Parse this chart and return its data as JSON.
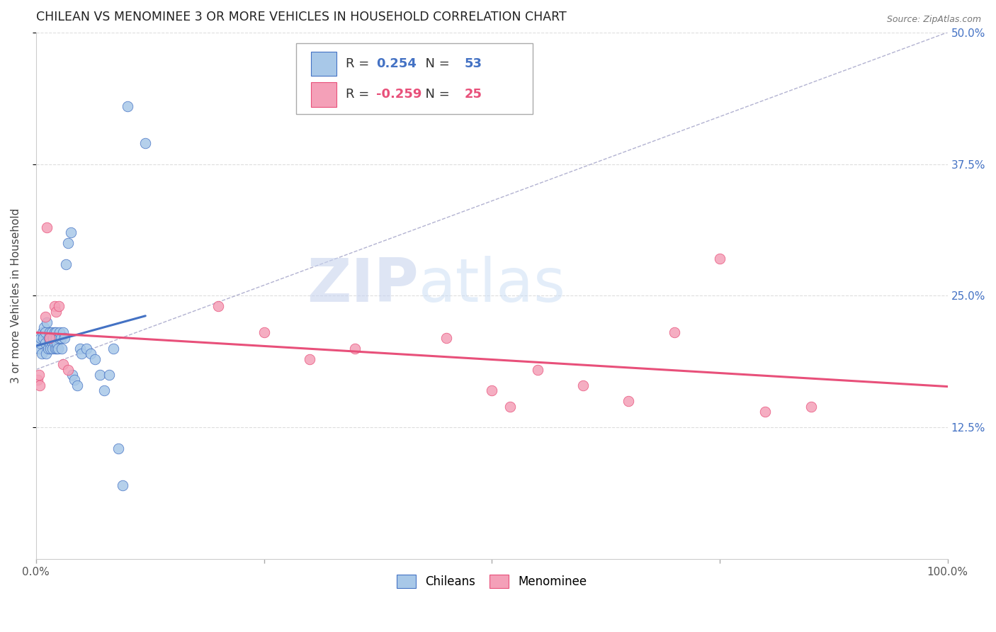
{
  "title": "CHILEAN VS MENOMINEE 3 OR MORE VEHICLES IN HOUSEHOLD CORRELATION CHART",
  "source": "Source: ZipAtlas.com",
  "ylabel": "3 or more Vehicles in Household",
  "chilean_R": 0.254,
  "chilean_N": 53,
  "menominee_R": -0.259,
  "menominee_N": 25,
  "chilean_color": "#a8c8e8",
  "menominee_color": "#f4a0b8",
  "chilean_line_color": "#4472c4",
  "menominee_line_color": "#e8507a",
  "dashed_line_color": "#aaaacc",
  "watermark_zip_color": "#c8d4ee",
  "watermark_atlas_color": "#c8d8f0",
  "chilean_x": [
    0.003,
    0.004,
    0.005,
    0.006,
    0.007,
    0.008,
    0.009,
    0.01,
    0.01,
    0.011,
    0.012,
    0.013,
    0.014,
    0.015,
    0.015,
    0.016,
    0.017,
    0.018,
    0.018,
    0.019,
    0.02,
    0.02,
    0.021,
    0.022,
    0.022,
    0.023,
    0.023,
    0.024,
    0.025,
    0.026,
    0.027,
    0.028,
    0.03,
    0.031,
    0.033,
    0.035,
    0.038,
    0.04,
    0.042,
    0.045,
    0.048,
    0.05,
    0.055,
    0.06,
    0.065,
    0.07,
    0.075,
    0.08,
    0.085,
    0.09,
    0.095,
    0.1,
    0.12
  ],
  "chilean_y": [
    0.2,
    0.205,
    0.21,
    0.195,
    0.215,
    0.21,
    0.22,
    0.215,
    0.205,
    0.195,
    0.225,
    0.2,
    0.21,
    0.205,
    0.215,
    0.2,
    0.215,
    0.205,
    0.2,
    0.21,
    0.215,
    0.205,
    0.2,
    0.215,
    0.21,
    0.2,
    0.205,
    0.2,
    0.21,
    0.215,
    0.21,
    0.2,
    0.215,
    0.21,
    0.28,
    0.3,
    0.31,
    0.175,
    0.17,
    0.165,
    0.2,
    0.195,
    0.2,
    0.195,
    0.19,
    0.175,
    0.16,
    0.175,
    0.2,
    0.105,
    0.07,
    0.43,
    0.395
  ],
  "menominee_x": [
    0.002,
    0.003,
    0.004,
    0.01,
    0.012,
    0.015,
    0.02,
    0.022,
    0.025,
    0.03,
    0.035,
    0.2,
    0.25,
    0.3,
    0.35,
    0.45,
    0.5,
    0.52,
    0.55,
    0.6,
    0.65,
    0.7,
    0.75,
    0.8,
    0.85
  ],
  "menominee_y": [
    0.17,
    0.175,
    0.165,
    0.23,
    0.315,
    0.21,
    0.24,
    0.235,
    0.24,
    0.185,
    0.18,
    0.24,
    0.215,
    0.19,
    0.2,
    0.21,
    0.16,
    0.145,
    0.18,
    0.165,
    0.15,
    0.215,
    0.285,
    0.14,
    0.145
  ],
  "xlim": [
    0.0,
    1.0
  ],
  "ylim": [
    0.0,
    0.5
  ],
  "xtick_vals": [
    0.0,
    0.25,
    0.5,
    0.75,
    1.0
  ],
  "xtick_labels": [
    "0.0%",
    "",
    "",
    "",
    "100.0%"
  ],
  "ytick_vals": [
    0.125,
    0.25,
    0.375,
    0.5
  ],
  "ytick_labels": [
    "12.5%",
    "25.0%",
    "37.5%",
    "50.0%"
  ]
}
